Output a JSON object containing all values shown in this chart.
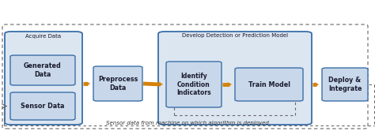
{
  "bg_color": "#ffffff",
  "box_fill": "#c8d8ea",
  "box_edge": "#3a6ea8",
  "outer_fill": "#dce6f1",
  "outer_edge": "#3a6ea8",
  "arrow_color": "#d4820a",
  "dashed_color": "#666666",
  "text_color": "#1a1a2e",
  "bottom_text": "Sensor data from machine on which algorithm is deployed",
  "acquire_label": "Acquire Data",
  "gen_data_label": "Generated\nData",
  "sensor_label": "Sensor Data",
  "preprocess_label": "Preprocess\nData",
  "develop_label": "Develop Detection or Prediction Model",
  "identify_label": "Identify\nCondition\nIndicators",
  "train_label": "Train Model",
  "deploy_label": "Deploy &\nIntegrate",
  "fig_w": 4.74,
  "fig_h": 1.66,
  "dpi": 100
}
